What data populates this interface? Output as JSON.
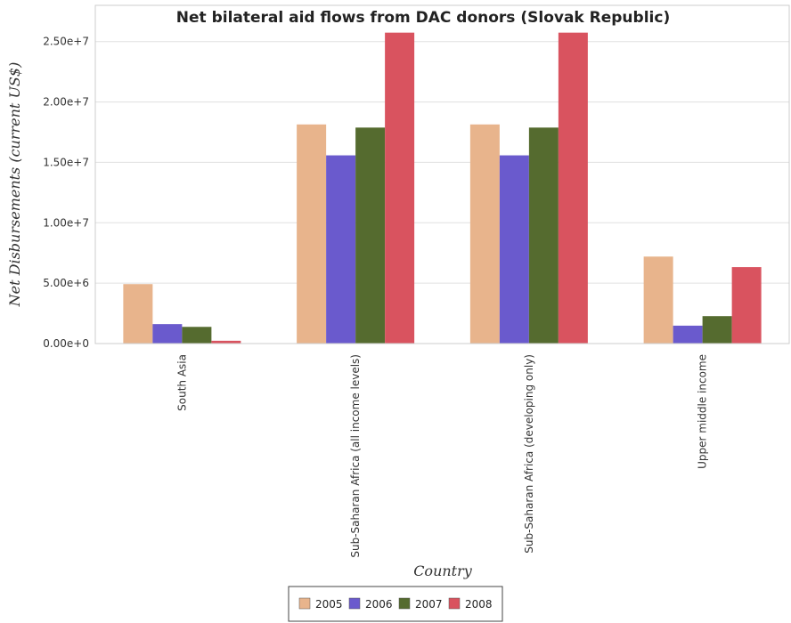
{
  "chart_data": {
    "type": "bar",
    "title": "Net bilateral aid flows from DAC donors (Slovak Republic)",
    "xlabel": "Country",
    "ylabel": "Net Disbursements (current US$)",
    "ylim": [
      0,
      28000000
    ],
    "yticks": [
      0,
      5000000,
      10000000,
      15000000,
      20000000,
      25000000
    ],
    "ytick_labels": [
      "0.00e+0",
      "5.00e+6",
      "1.00e+7",
      "1.50e+7",
      "2.00e+7",
      "2.50e+7"
    ],
    "grid": true,
    "legend_position": "bottom-center",
    "categories": [
      "South Asia",
      "Sub-Saharan Africa (all income levels)",
      "Sub-Saharan Africa (developing only)",
      "Upper middle income"
    ],
    "series": [
      {
        "name": "2005",
        "color": "#e8b48c",
        "values": [
          4920000,
          18140000,
          18140000,
          7200000
        ]
      },
      {
        "name": "2006",
        "color": "#6a5acd",
        "values": [
          1610000,
          15580000,
          15580000,
          1480000
        ]
      },
      {
        "name": "2007",
        "color": "#556b2f",
        "values": [
          1380000,
          17880000,
          17880000,
          2270000
        ]
      },
      {
        "name": "2008",
        "color": "#d9535f",
        "values": [
          230000,
          25740000,
          25740000,
          6330000
        ]
      }
    ]
  }
}
